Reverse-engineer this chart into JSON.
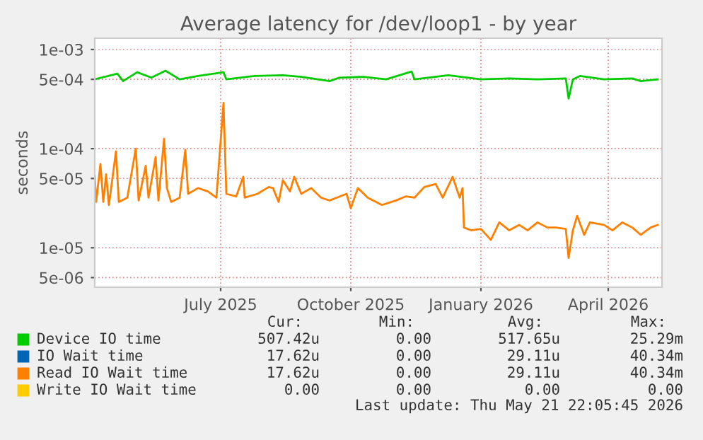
{
  "chart_data": {
    "type": "line",
    "title": "Average latency for /dev/loop1 - by year",
    "ylabel": "seconds",
    "log": "y",
    "ylim": [
      4e-06,
      0.0013
    ],
    "yticks": [
      {
        "value": 5e-06,
        "label": "5e-06"
      },
      {
        "value": 1e-05,
        "label": "1e-05"
      },
      {
        "value": 5e-05,
        "label": "5e-05"
      },
      {
        "value": 0.0001,
        "label": "1e-04"
      },
      {
        "value": 0.0005,
        "label": "5e-04"
      },
      {
        "value": 0.001,
        "label": "1e-03"
      }
    ],
    "xlim": [
      "2025-04-18",
      "2026-05-24"
    ],
    "xticks": [
      {
        "value": "2025-07-16",
        "label": "July 2025"
      },
      {
        "value": "2025-10-16",
        "label": "October 2025"
      },
      {
        "value": "2026-01-16",
        "label": "January 2026"
      },
      {
        "value": "2026-04-16",
        "label": "April 2026"
      }
    ],
    "grid": true,
    "legend": "bottom",
    "series": [
      {
        "name": "Device IO time",
        "color": "#00cc00",
        "x": [
          "2025-04-18",
          "2025-05-04",
          "2025-05-08",
          "2025-05-18",
          "2025-05-28",
          "2025-06-07",
          "2025-06-17",
          "2025-06-30",
          "2025-07-18",
          "2025-07-20",
          "2025-08-09",
          "2025-08-29",
          "2025-09-11",
          "2025-10-01",
          "2025-10-08",
          "2025-10-25",
          "2025-11-10",
          "2025-11-28",
          "2025-11-30",
          "2025-12-24",
          "2026-01-16",
          "2026-02-05",
          "2026-02-25",
          "2026-03-17",
          "2026-03-19",
          "2026-03-22",
          "2026-03-27",
          "2026-04-13",
          "2026-05-03",
          "2026-05-09",
          "2026-05-21"
        ],
        "values": [
          0.0005,
          0.00057,
          0.00048,
          0.00059,
          0.00052,
          0.00061,
          0.0005,
          0.00054,
          0.00059,
          0.0005,
          0.00054,
          0.00055,
          0.00053,
          0.00048,
          0.00052,
          0.00053,
          0.0005,
          0.0006,
          0.0005,
          0.00055,
          0.0005,
          0.00051,
          0.0005,
          0.00051,
          0.00032,
          0.0005,
          0.00054,
          0.0005,
          0.00051,
          0.00048,
          0.0005
        ]
      },
      {
        "name": "IO Wait time",
        "color": "#0066b3"
      },
      {
        "name": "Read IO Wait time",
        "color": "#ff8000",
        "x": [
          "2025-04-18",
          "2025-04-19",
          "2025-04-22",
          "2025-04-24",
          "2025-04-26",
          "2025-04-28",
          "2025-05-03",
          "2025-05-05",
          "2025-05-11",
          "2025-05-17",
          "2025-05-19",
          "2025-05-24",
          "2025-05-26",
          "2025-05-31",
          "2025-06-02",
          "2025-06-06",
          "2025-06-08",
          "2025-06-11",
          "2025-06-17",
          "2025-06-21",
          "2025-06-23",
          "2025-06-30",
          "2025-07-07",
          "2025-07-13",
          "2025-07-18",
          "2025-07-20",
          "2025-07-27",
          "2025-08-01",
          "2025-08-02",
          "2025-08-11",
          "2025-08-19",
          "2025-08-22",
          "2025-08-26",
          "2025-08-29",
          "2025-09-03",
          "2025-09-06",
          "2025-09-11",
          "2025-09-18",
          "2025-09-25",
          "2025-10-01",
          "2025-10-06",
          "2025-10-13",
          "2025-10-16",
          "2025-10-21",
          "2025-10-28",
          "2025-11-07",
          "2025-11-17",
          "2025-11-24",
          "2025-11-30",
          "2025-12-07",
          "2025-12-15",
          "2025-12-20",
          "2025-12-27",
          "2026-01-01",
          "2026-01-03",
          "2026-01-04",
          "2026-01-09",
          "2026-01-16",
          "2026-01-23",
          "2026-01-29",
          "2026-02-05",
          "2026-02-12",
          "2026-02-18",
          "2026-02-25",
          "2026-03-04",
          "2026-03-10",
          "2026-03-17",
          "2026-03-19",
          "2026-03-22",
          "2026-03-25",
          "2026-03-30",
          "2026-04-03",
          "2026-04-13",
          "2026-04-19",
          "2026-04-26",
          "2026-05-03",
          "2026-05-09",
          "2026-05-16",
          "2026-05-21"
        ],
        "values": [
          5.3e-05,
          2.9e-05,
          7e-05,
          2.9e-05,
          5.5e-05,
          2.7e-05,
          9.4e-05,
          2.9e-05,
          3.2e-05,
          0.0001,
          3e-05,
          6.7e-05,
          3.2e-05,
          8.2e-05,
          3e-05,
          0.000126,
          4e-05,
          2.9e-05,
          3.2e-05,
          9.7e-05,
          3.5e-05,
          4e-05,
          3.7e-05,
          3.2e-05,
          0.00029,
          3.5e-05,
          3.3e-05,
          5.2e-05,
          3.2e-05,
          3.5e-05,
          4.1e-05,
          4e-05,
          2.9e-05,
          4.8e-05,
          3.7e-05,
          5.2e-05,
          3.5e-05,
          4e-05,
          3.2e-05,
          3e-05,
          3.2e-05,
          3.5e-05,
          2.5e-05,
          4e-05,
          3.2e-05,
          2.7e-05,
          3e-05,
          3.3e-05,
          3.2e-05,
          4.1e-05,
          4.4e-05,
          3.2e-05,
          5.2e-05,
          3.2e-05,
          4e-05,
          1.6e-05,
          1.5e-05,
          1.55e-05,
          1.2e-05,
          1.8e-05,
          1.5e-05,
          1.7e-05,
          1.5e-05,
          1.8e-05,
          1.6e-05,
          1.6e-05,
          1.55e-05,
          7.9e-06,
          1.5e-05,
          2.1e-05,
          1.35e-05,
          1.8e-05,
          1.7e-05,
          1.5e-05,
          1.8e-05,
          1.6e-05,
          1.35e-05,
          1.6e-05,
          1.7e-05
        ]
      },
      {
        "name": "Write IO Wait time",
        "color": "#ffcc00"
      }
    ],
    "annotations": [
      "Cur:",
      "Min:",
      "Avg:",
      "Max:",
      "507.42u",
      "0.00",
      "517.65u",
      "25.29m",
      "17.62u",
      "0.00",
      "29.11u",
      "40.34m",
      "17.62u",
      "0.00",
      "29.11u",
      "40.34m",
      "0.00",
      "0.00",
      "0.00",
      "0.00",
      "Last update: Thu May 21 22:05:45 2026"
    ]
  }
}
